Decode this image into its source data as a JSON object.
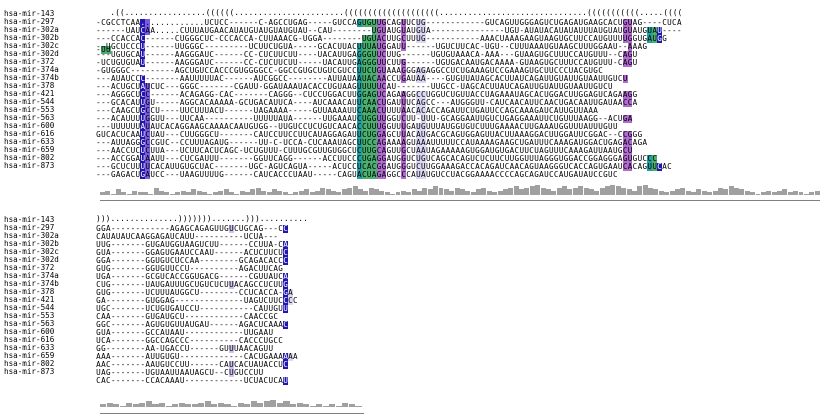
{
  "alignment": {
    "names": [
      "hsa-mir-143",
      "hsa-mir-297",
      "hsa-mir-302a",
      "hsa-mir-302b",
      "hsa-mir-302c",
      "hsa-mir-302d",
      "hsa-mir-372",
      "hsa-mir-374a",
      "hsa-mir-374b",
      "hsa-mir-378",
      "hsa-mir-421",
      "hsa-mir-544",
      "hsa-mir-553",
      "hsa-mir-563",
      "hsa-mir-600",
      "hsa-mir-616",
      "hsa-mir-633",
      "hsa-mir-659",
      "hsa-mir-802",
      "hsa-mir-873"
    ],
    "block1": {
      "structure": "   .((.................((((((.......................((((((((((((((((((((...............................(((((((((((.....((((",
      "rows": [
        "-CGCCTCAA.............UCUCC------C-AGCCUGAG-----GUCCAGUGUUGCAGUUCUG------------GUCAGUUGGGAGUCUGAGAUGAAGCACUGUAG----CUCA",
        "------UAUCAA.....CUUUAUGAACAUAUGUAUGUAUGUAU--CAU--------UGUAUGUAUGUA---------------UGU-AUAUACAUAUAUUUAUGUAUGUAUGUAU-----UU",
        "---CCACCAC------CUGGGCUC-CCCACCA-CUUAAACG-UGGA--------UGUACUUGCUUUG-----------AAACUAAAGAAGUAAGUGCUUCCAUGUUUUGGUGAUGG",
        "--UGCUCCCU------UUGGGC---------UCUUCUGUA-----GCACUUACUUUAUGGAUU------UGUCUUCAC-UGU--CUUUAAAUGUAAGCUUUGGAAU--AAAG",
        "---UGUGCAU------AAGGGAUC------CC-CUCUUCUU----UACAUUGAGGGUUCUUG------UGUGUAAACA-AAA---GUAAGUGCUUUCCAUGUUU--CAGU",
        "-UCUGUGUAU------AAGGGAUC------CC-CUCUUCUU-----UACAUUGAGGGUUCUUG------UGUGACAAUGACAAAA-GUAAGUGCUUUCCAUGUUU-CAGU",
        "-GUGGGC---------AGCUGUCCACCCGUGGGGCC-GGCCGUGCUGUCGUCCUUCUGUAAAGGGAGAGGCCUCUGAAAGUCCGAAAGUGCUUCCCUACGUGC",
        "---AUAUCCC-------AAUUUUUAC------AUCGGCC--------AUUAUAAUACAACCUGAUAA----GUGUUAUAGCACUUAUCAGAUUGUAUUGUAAUUGUCU",
        "---ACUGCUAUCUC---GGGC-------CGAUU-GGAUAAAUACACCUGUAAGUUUUUCAU-------UUGCC-UAGCACUUAUCAGAUUGUAUUGUAAUUGUCU",
        "---AGGGCUCC------ACAGAGG-CAC-------CAGGG--CUCCUGGACUUGGAGUCAGAAGGCCUGGUCUGUUACCUAGAAAUAGCACUGGACUUGGAGUCAGAAGG",
        "---GCACAUUGU-----AGGCACAAAAA-GCUGACAUUCA----AUCAAACAUUCAACUGAUUUCAGCC---AUGGGUU-CAUCAACAUUCAACUGACAAUUGAUAACCA",
        "---CAAGCUGCCU----UUCUUUACU------UAGAAAA-----GUUAAAAUUCAAACUUUUAACACACCAGAUUCUGAUUCCAGCAAAGAUCAUUGUUAAA",
        "---ACAUUUUGGUU---UUCAA----------UUUUUAUA------UUGAAAUCUGGUUGGUCUU-UUU-GCAGGAAUUGUCUGAGGAAAUUCUGUUUAAGG--ACUGA",
        "---UUUUUUAUAUCACAGGAAGCAAAACAAUGUGG--UUGUCCUCUGUCAACACCUUUGGUUUGAUGUUUAUGGUGUCUUUGAAAACUUGAAAUGGUUUAUUUGUU",
        "GUCACUCAAUCUAU---CUUGGGCU-------CAUCCUUCCUUCAUAGGAGAUUCUGGAGCUUACAUGACGCAGUGGAGUUACUUAAAGGACUUGGAUUCGGAC--CCGGG",
        "---AUUAGGGCCGUC--CCUUUAGAUG------UU-C-UCCA-CUCAAAUAGCUUCCAGAAAAGUAAAUUUUUCCAUAAAAGAAGCUGAUUUCAAAGAUGGACUGAGACAGA",
        "---AACCUCUCUUA---UCUUCACUCAGC-UCUGUUU-CUUUGCGUUGUGGCUCUUGCAGUUGCUAAUAGAAAAAGUGGAUGUGACUUCUAGUUUCAAAGAUUAAUGCU",
        "---ACCGGAUAAUU---CUCGAUUU-------GGUUCAGG------ACCUUCCCUGAGGAUGGUCUGUCAGCACAGUCUCUUCUUGGUUUAGGGUGGACCGGAGGGAGUGUCCC",
        "---GCUCUUUUCACAUUGUGCUAC-------UGC-AGUCAGUA-----ACUCCUCACGGAUGGGUCUUGGAAAGACCACAGAUCAACAGUAAGGGUCACCAGUGAAUCACAGUUCAC",
        "---GAGACUGAUCC---UAAGUUUUG------CAUCACCCUAAU-----CAGUACUAGAGGCCCAUAUGUCCUACGGAAAACCCCAGCAGAUCCAUGAUAUCCGUC"
      ],
      "hist": [
        2,
        3,
        1,
        4,
        2,
        1,
        3,
        2,
        2,
        1,
        5,
        3,
        2,
        1,
        2,
        3,
        2,
        4,
        3,
        2,
        1,
        2,
        3,
        4,
        2,
        1,
        3,
        2,
        4,
        5,
        3,
        2,
        4,
        3,
        2,
        1,
        2,
        3,
        4,
        2,
        3,
        5,
        4,
        3,
        2,
        4,
        5,
        6,
        4,
        3,
        5,
        4,
        3,
        2,
        1,
        2,
        3,
        2,
        4,
        3,
        5,
        4,
        6,
        5,
        4,
        3,
        5,
        4,
        3,
        2,
        4,
        5,
        3,
        2,
        3,
        4,
        5,
        6,
        4,
        5,
        6,
        7,
        5,
        4,
        3,
        5,
        6,
        4,
        5,
        6,
        5,
        4,
        3,
        5,
        6,
        7,
        6,
        5,
        4,
        3,
        6,
        7,
        5,
        4,
        3,
        2,
        3,
        4,
        5,
        3,
        2,
        4,
        3,
        2,
        3,
        5,
        4,
        6,
        5,
        4,
        3,
        2,
        1,
        2,
        3,
        2,
        3,
        4,
        2,
        3,
        2,
        1,
        2,
        3
      ]
    },
    "block2": {
      "structure": ")))..............))))))).......)))..........",
      "rows": [
        "GGA------------AGAGCAGAGUUGUCUGCAG---CC",
        "CAUAUAUCAAGGAGAUCAUU----------UCUA---",
        "UUG-------GUGAUGGUAAGUCUU------CCUUA-CA",
        "GUA-------GGAGUGAAUCCAAU------ACUCUUCUC",
        "GGA-------GGUGUCUCCAA--------GCAGACACCC",
        "GUG-------GGUGUUCCU----------AGACUUCAG",
        "UGA-------GCGUCACCGGUGACG------CGUUAUCA",
        "CUG-------UAUGAUUUGCUGUCUCUUACAGCCUCUUG",
        "GUG-------UCUUUAUGGCU--------CCUCACCA-GA",
        "GA--------GUGGAG--------------UAGUCUUCCCC",
        "UGC-------UCUGUGAUCCU-----------CAUUGUU",
        "CAA-------GUGAUGCU------------CAACCGC",
        "GGC-------AGUGUGUUAUGAU------AGACUCAAAC",
        "GUA-------GCCAUAAU------------UUGAAU",
        "UCA-------GGCCAGCCC----------CACCCUGCC",
        "GG--------AA-UGACCU------GUUUAACAGUU",
        "AAA-------AUUGUGU-------------CACUGAAAAAA",
        "AAC-------AAUGUCCUU------CAUCACUAUACCUC",
        "UAG-------UGUAAUUAAUAGCU--CUGUCCUU",
        "CAC-------CCACAAAU------------UCUACUCAU"
      ],
      "hist": [
        2,
        3,
        2,
        1,
        3,
        2,
        3,
        4,
        2,
        3,
        1,
        2,
        3,
        2,
        2,
        3,
        4,
        2,
        3,
        2,
        1,
        3,
        2,
        4,
        3,
        4,
        5,
        3,
        4,
        2,
        3,
        2,
        1,
        2,
        1,
        2,
        1,
        3,
        2,
        1
      ]
    }
  },
  "colors": {
    "dark_blue": "#2016b0",
    "purple": "#7a5ae0",
    "magenta": "#b06ad0",
    "teal": "#20a0a0",
    "lavender": "#cfc0f0",
    "pale_lavender": "#dcd8f4",
    "green": "#4ab070",
    "histogram_gray": "#a0a0a0"
  }
}
